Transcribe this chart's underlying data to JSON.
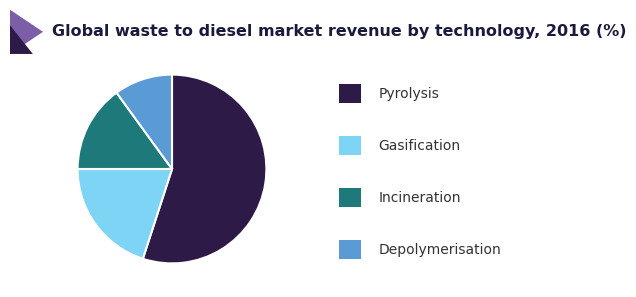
{
  "title": "Global waste to diesel market revenue by technology, 2016 (%)",
  "labels": [
    "Pyrolysis",
    "Gasification",
    "Incineration",
    "Depolymerisation"
  ],
  "sizes": [
    55,
    20,
    15,
    10
  ],
  "colors": [
    "#2e1a47",
    "#7dd4f5",
    "#1e7a7a",
    "#5b9bd5"
  ],
  "legend_labels": [
    "Pyrolysis",
    "Gasification",
    "Incineration",
    "Depolymerisation"
  ],
  "startangle": 90,
  "title_fontsize": 11.5,
  "legend_fontsize": 10,
  "background_color": "#ffffff",
  "title_color": "#1a1a3e",
  "header_line_color": "#6b2d8b",
  "header_triangle_color": "#2e1a47",
  "header_triangle_light": "#7b5ea7"
}
